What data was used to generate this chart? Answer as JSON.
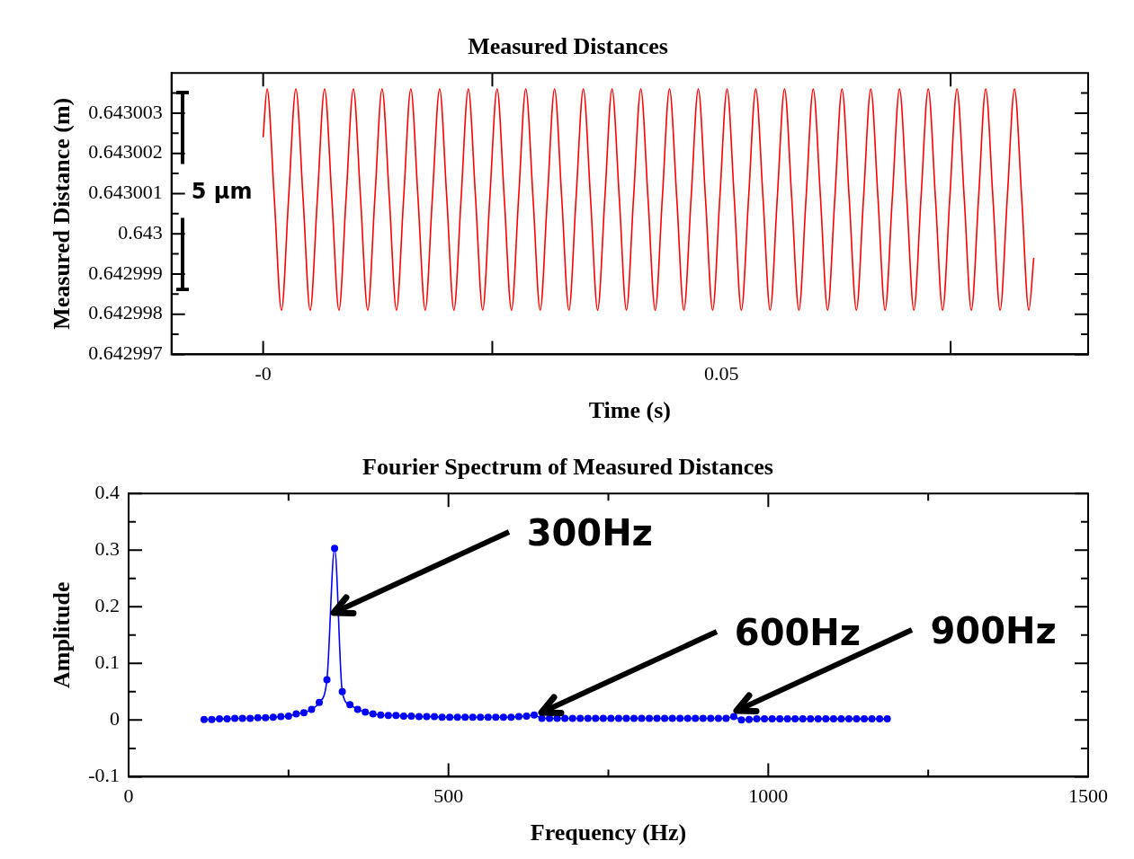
{
  "chart_data": [
    {
      "type": "line",
      "title": "Measured Distances",
      "xlabel": "Time (s)",
      "ylabel": "Measured Distance (m)",
      "marker": "none",
      "line_style": "solid",
      "xlim": [
        -0.01,
        0.09
      ],
      "xticks": [
        {
          "value": 0,
          "label": "-0"
        },
        {
          "value": 0.025,
          "label": null
        },
        0.05,
        {
          "value": 0.075,
          "label": null
        }
      ],
      "ylim": [
        0.642997,
        0.643004
      ],
      "yticks": [
        0.642997,
        {
          "value": 0.6429975,
          "label": null
        },
        0.642998,
        {
          "value": 0.6429985,
          "label": null
        },
        0.642999,
        {
          "value": 0.6429995,
          "label": null
        },
        0.643,
        {
          "value": 0.6430005,
          "label": null
        },
        0.643001,
        {
          "value": 0.6430015,
          "label": null
        },
        0.643002,
        {
          "value": 0.6430025,
          "label": null
        },
        0.643003,
        {
          "value": 0.6430035,
          "label": null
        }
      ],
      "annotations": [
        "5 µm"
      ],
      "series": [
        {
          "color": "#ff0000",
          "x": [
            0,
            0.00043,
            0.00121,
            0.002,
            0.00278,
            0.00357,
            0.00435,
            0.00513,
            0.00592,
            0.0067,
            0.00749,
            0.00827,
            0.00905,
            0.00984,
            0.01062,
            0.01141,
            0.01219,
            0.01297,
            0.01376,
            0.01454,
            0.01533,
            0.01611,
            0.01689,
            0.01768,
            0.01846,
            0.01925,
            0.02003,
            0.02081,
            0.0216,
            0.02238,
            0.02317,
            0.02395,
            0.02473,
            0.02552,
            0.0263,
            0.02709,
            0.02787,
            0.02865,
            0.02944,
            0.03022,
            0.03101,
            0.03179,
            0.03257,
            0.03336,
            0.03414,
            0.03493,
            0.03571,
            0.03649,
            0.03728,
            0.03806,
            0.03885,
            0.03963,
            0.04041,
            0.0412,
            0.04198,
            0.04277,
            0.04355,
            0.04433,
            0.04512,
            0.0459,
            0.04669,
            0.04747,
            0.04825,
            0.04904,
            0.04982,
            0.05061,
            0.05139,
            0.05217,
            0.05296,
            0.05374,
            0.05453,
            0.05531,
            0.05609,
            0.05688,
            0.05766,
            0.05845,
            0.05923,
            0.06001,
            0.0608,
            0.06158,
            0.06237,
            0.06315,
            0.06393,
            0.06472,
            0.0655,
            0.06629,
            0.06707,
            0.06785,
            0.06864,
            0.06942,
            0.07021,
            0.07099,
            0.07177,
            0.07256,
            0.07334,
            0.07413,
            0.07491,
            0.07569,
            0.07648,
            0.07726,
            0.07805,
            0.07883,
            0.07961,
            0.0804,
            0.08118,
            0.08197,
            0.08275,
            0.08353,
            0.08407
          ],
          "values": [
            0.6430024,
            0.6430036,
            0.6430009,
            0.6429981,
            0.6430009,
            0.6430036,
            0.6430009,
            0.6429981,
            0.6430009,
            0.6430036,
            0.6430009,
            0.6429981,
            0.6430009,
            0.6430036,
            0.6430009,
            0.6429981,
            0.6430009,
            0.6430036,
            0.6430009,
            0.6429981,
            0.6430009,
            0.6430036,
            0.6430009,
            0.6429981,
            0.6430009,
            0.6430036,
            0.6430009,
            0.6429981,
            0.6430009,
            0.6430036,
            0.6430009,
            0.6429981,
            0.6430009,
            0.6430036,
            0.6430009,
            0.6429981,
            0.6430009,
            0.6430036,
            0.6430009,
            0.6429981,
            0.6430009,
            0.6430036,
            0.6430009,
            0.6429981,
            0.6430009,
            0.6430036,
            0.6430009,
            0.6429981,
            0.6430009,
            0.6430036,
            0.6430009,
            0.6429981,
            0.6430009,
            0.6430036,
            0.6430009,
            0.6429981,
            0.6430009,
            0.6430036,
            0.6430009,
            0.6429981,
            0.6430009,
            0.6430036,
            0.6430009,
            0.6429981,
            0.6430009,
            0.6430036,
            0.6430009,
            0.6429981,
            0.6430009,
            0.6430036,
            0.6430009,
            0.6429981,
            0.6430009,
            0.6430036,
            0.6430009,
            0.6429981,
            0.6430009,
            0.6430036,
            0.6430009,
            0.6429981,
            0.6430009,
            0.6430036,
            0.6430009,
            0.6429981,
            0.6430009,
            0.6430036,
            0.6430009,
            0.6429981,
            0.6430009,
            0.6430036,
            0.6430009,
            0.6429981,
            0.6430009,
            0.6430036,
            0.6430009,
            0.6429981,
            0.6430009,
            0.6430036,
            0.6430009,
            0.6429981,
            0.6430009,
            0.6430036,
            0.6430009,
            0.6429981,
            0.6430009,
            0.6430036,
            0.6430009,
            0.6429981,
            0.6429994
          ]
        }
      ]
    },
    {
      "type": "line",
      "title": "Fourier Spectrum of Measured Distances",
      "xlabel": "Frequency (Hz)",
      "ylabel": "Amplitude",
      "marker": "circle",
      "line_style": "solid",
      "xlim": [
        0,
        1500
      ],
      "xticks": [
        0,
        {
          "value": 250,
          "label": null
        },
        500,
        {
          "value": 750,
          "label": null
        },
        1000,
        {
          "value": 1250,
          "label": null
        },
        1500
      ],
      "ylim": [
        -0.1,
        0.4
      ],
      "yticks": [
        -0.1,
        {
          "value": -0.05,
          "label": null
        },
        0,
        {
          "value": 0.05,
          "label": null
        },
        0.1,
        {
          "value": 0.15,
          "label": null
        },
        0.2,
        {
          "value": 0.25,
          "label": null
        },
        0.3,
        {
          "value": 0.35,
          "label": null
        },
        0.4
      ],
      "annotations": [
        {
          "text": "300Hz",
          "x": 320,
          "y": 0.19
        },
        {
          "text": "600Hz",
          "x": 645,
          "y": 0.014
        },
        {
          "text": "900Hz",
          "x": 951,
          "y": 0.017
        }
      ],
      "series": [
        {
          "color": "#0000ff",
          "x": [
            118,
            130,
            142,
            154,
            166,
            178,
            190,
            202,
            214,
            226,
            238,
            250,
            262,
            274,
            286,
            298,
            310,
            322,
            334,
            346,
            358,
            370,
            382,
            394,
            406,
            418,
            430,
            442,
            454,
            466,
            478,
            490,
            502,
            514,
            526,
            538,
            550,
            562,
            574,
            586,
            598,
            610,
            622,
            634,
            646,
            658,
            670,
            682,
            694,
            706,
            718,
            730,
            742,
            754,
            766,
            778,
            790,
            802,
            814,
            826,
            838,
            850,
            862,
            874,
            886,
            898,
            910,
            922,
            934,
            946,
            958,
            970,
            982,
            994,
            1006,
            1018,
            1030,
            1042,
            1054,
            1066,
            1078,
            1090,
            1102,
            1114,
            1126,
            1138,
            1150,
            1162,
            1174,
            1186
          ],
          "values": [
            0.001,
            0.001,
            0.002,
            0.002,
            0.003,
            0.003,
            0.003,
            0.004,
            0.004,
            0.005,
            0.006,
            0.007,
            0.011,
            0.013,
            0.019,
            0.031,
            0.071,
            0.303,
            0.05,
            0.027,
            0.019,
            0.014,
            0.011,
            0.009,
            0.008,
            0.008,
            0.007,
            0.007,
            0.006,
            0.006,
            0.006,
            0.005,
            0.005,
            0.005,
            0.005,
            0.005,
            0.005,
            0.005,
            0.005,
            0.005,
            0.005,
            0.006,
            0.007,
            0.009,
            0.003,
            0.003,
            0.003,
            0.003,
            0.003,
            0.003,
            0.003,
            0.003,
            0.003,
            0.003,
            0.003,
            0.003,
            0.003,
            0.003,
            0.003,
            0.003,
            0.003,
            0.003,
            0.003,
            0.003,
            0.003,
            0.003,
            0.003,
            0.003,
            0.003,
            0.006,
            0,
            0.001,
            0.002,
            0.002,
            0.002,
            0.002,
            0.002,
            0.002,
            0.002,
            0.002,
            0.002,
            0.002,
            0.002,
            0.002,
            0.002,
            0.002,
            0.002,
            0.002,
            0.002,
            0.002
          ]
        }
      ]
    }
  ]
}
